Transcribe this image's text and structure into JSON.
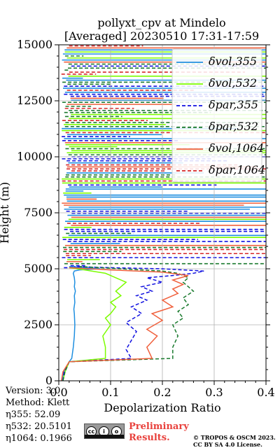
{
  "chart_data": {
    "type": "line",
    "title_line1": "pollyxt_cpv at Mindelo",
    "title_line2": "[Averaged] 20230510 17:31-17:59",
    "xlabel": "Depolarization Ratio",
    "ylabel": "Height (m)",
    "xlim": [
      0,
      0.4
    ],
    "ylim": [
      0,
      15000
    ],
    "xticks": [
      "0.0",
      "0.1",
      "0.2",
      "0.3",
      "0.4"
    ],
    "yticks": [
      "0",
      "2500",
      "5000",
      "7500",
      "10000",
      "12500",
      "15000"
    ],
    "grid": true,
    "legend_position": "top-right",
    "series": [
      {
        "name": "δvol,355",
        "key": "vol355",
        "color": "#1f8fe0",
        "dash": "solid",
        "x": [
          0.006,
          0.01,
          0.02,
          0.025,
          0.028,
          0.03,
          0.031,
          0.03,
          0.029,
          0.031,
          0.03,
          0.032,
          0.03,
          0.031,
          0.03,
          0.028,
          0.03,
          0.04,
          0.08,
          0.02
        ],
        "y": [
          0,
          400,
          850,
          1000,
          1500,
          2000,
          2500,
          3000,
          3200,
          3500,
          3800,
          4000,
          4200,
          4400,
          4600,
          4800,
          4900,
          4950,
          5000,
          5100
        ]
      },
      {
        "name": "δvol,532",
        "key": "vol532",
        "color": "#7cfc00",
        "dash": "solid",
        "x": [
          0.008,
          0.012,
          0.02,
          0.09,
          0.09,
          0.085,
          0.1,
          0.09,
          0.1,
          0.11,
          0.1,
          0.12,
          0.11,
          0.12,
          0.13,
          0.11,
          0.1,
          0.09,
          0.05,
          0.02
        ],
        "y": [
          0,
          400,
          850,
          1000,
          1500,
          2000,
          2500,
          2800,
          3000,
          3300,
          3500,
          3800,
          4000,
          4200,
          4400,
          4600,
          4700,
          4800,
          4950,
          5050
        ]
      },
      {
        "name": "δpar,355",
        "key": "par355",
        "color": "#1010e0",
        "dash": "dash",
        "x": [
          0.008,
          0.01,
          0.02,
          0.14,
          0.13,
          0.14,
          0.15,
          0.13,
          0.16,
          0.14,
          0.17,
          0.15,
          0.18,
          0.16,
          0.2,
          0.17,
          0.22,
          0.26,
          0.28,
          0.2,
          0.1,
          0.03
        ],
        "y": [
          0,
          400,
          850,
          1000,
          1400,
          1800,
          2200,
          2600,
          3000,
          3300,
          3600,
          3800,
          4000,
          4200,
          4400,
          4600,
          4700,
          4800,
          4900,
          5000,
          5050,
          5100
        ]
      },
      {
        "name": "δpar,532",
        "key": "par532",
        "color": "#1a7a2e",
        "dash": "dash",
        "x": [
          0.008,
          0.012,
          0.02,
          0.22,
          0.22,
          0.23,
          0.22,
          0.24,
          0.23,
          0.25,
          0.24,
          0.26,
          0.25,
          0.24,
          0.25,
          0.23,
          0.2,
          0.12,
          0.04
        ],
        "y": [
          0,
          400,
          850,
          1000,
          1500,
          2000,
          2500,
          2800,
          3100,
          3400,
          3700,
          4000,
          4200,
          4400,
          4600,
          4800,
          4900,
          5000,
          5100
        ]
      },
      {
        "name": "δvol,1064",
        "key": "vol1064",
        "color": "#f0603c",
        "dash": "solid",
        "x": [
          0.005,
          0.008,
          0.02,
          0.18,
          0.17,
          0.19,
          0.17,
          0.2,
          0.18,
          0.22,
          0.2,
          0.23,
          0.22,
          0.24,
          0.22,
          0.25,
          0.2,
          0.1,
          0.02
        ],
        "y": [
          0,
          400,
          850,
          1000,
          1500,
          2000,
          2300,
          2700,
          3000,
          3300,
          3600,
          3900,
          4100,
          4300,
          4500,
          4700,
          4850,
          4950,
          5050
        ]
      },
      {
        "name": "δpar,1064",
        "key": "par1064",
        "color": "#d62728",
        "dash": "dash",
        "x": [],
        "y": []
      }
    ]
  },
  "footer": {
    "version": "Version: 3.0",
    "method": "Method: Klett",
    "eta355": "η355:  52.09",
    "eta532": "η532: 20.5101",
    "eta1064": "η1064: 0.1966",
    "preliminary_line1": "Preliminary",
    "preliminary_line2": "Results.",
    "copyright_line1": "© TROPOS & OSCM 2023.",
    "copyright_line2": "CC BY SA 4.0 License."
  }
}
